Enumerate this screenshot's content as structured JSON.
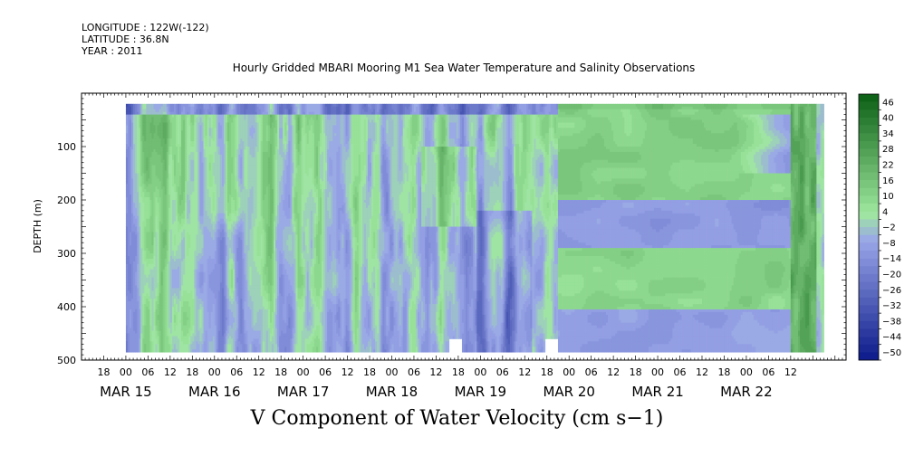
{
  "meta": {
    "longitude": "LONGITUDE : 122W(-122)",
    "latitude": "LATITUDE : 36.8N",
    "year": "YEAR : 2011"
  },
  "title": "Hourly Gridded MBARI Mooring M1 Sea Water Temperature and Salinity Observations",
  "bottom_title": "V Component of Water Velocity (cm s−1)",
  "colors": {
    "low": "#0b1a8a",
    "mid_low": "#9aa6e8",
    "mid_high": "#9fe89f",
    "high": "#0a5e14"
  },
  "chart_data": {
    "type": "heatmap",
    "title": "Hourly Gridded MBARI Mooring M1 Sea Water Temperature and Salinity Observations",
    "xlabel": "",
    "ylabel": "DEPTH (m)",
    "ylim": [
      500,
      0
    ],
    "yticks": [
      100,
      200,
      300,
      400,
      500
    ],
    "xlim_hours": [
      -12,
      195
    ],
    "x_hour_ticks": [
      "18",
      "00",
      "06",
      "12",
      "18",
      "00",
      "06",
      "12",
      "18",
      "00",
      "06",
      "12",
      "18",
      "00",
      "06",
      "12",
      "18",
      "00",
      "06",
      "12",
      "18",
      "00",
      "06",
      "12",
      "18",
      "00",
      "06",
      "12",
      "18",
      "00",
      "06",
      "12"
    ],
    "x_day_labels": [
      "MAR 15",
      "MAR 16",
      "MAR 17",
      "MAR 18",
      "MAR 19",
      "MAR 20",
      "MAR 21",
      "MAR 22"
    ],
    "colorbar_labels": [
      "46",
      "40",
      "34",
      "28",
      "22",
      "16",
      "10",
      "4",
      "−2",
      "−8",
      "−14",
      "−20",
      "−26",
      "−32",
      "−38",
      "−44",
      "−50"
    ],
    "colorbar_range": [
      -50,
      50
    ],
    "colorbar_levels": 34,
    "depth_range_data": [
      20,
      485
    ],
    "time_range_data_hours": [
      0,
      189
    ],
    "regimes": [
      {
        "from_hour": 0,
        "to_hour": 117,
        "pattern": "noisy vertical bands alternating green (positive) and blue (negative), upper 30m blue"
      },
      {
        "from_hour": 117,
        "to_hour": 180,
        "pattern": "horizontal layers: green 20-200m, blue 210-290m, green 290-400m, blue 410-485m"
      },
      {
        "from_hour": 180,
        "to_hour": 189,
        "pattern": "strong green column from surface to 485m"
      }
    ],
    "gaps": [
      {
        "hour": 89,
        "depth_from": 460,
        "depth_to": 485
      },
      {
        "hour": 115,
        "depth_from": 460,
        "depth_to": 485
      }
    ]
  }
}
